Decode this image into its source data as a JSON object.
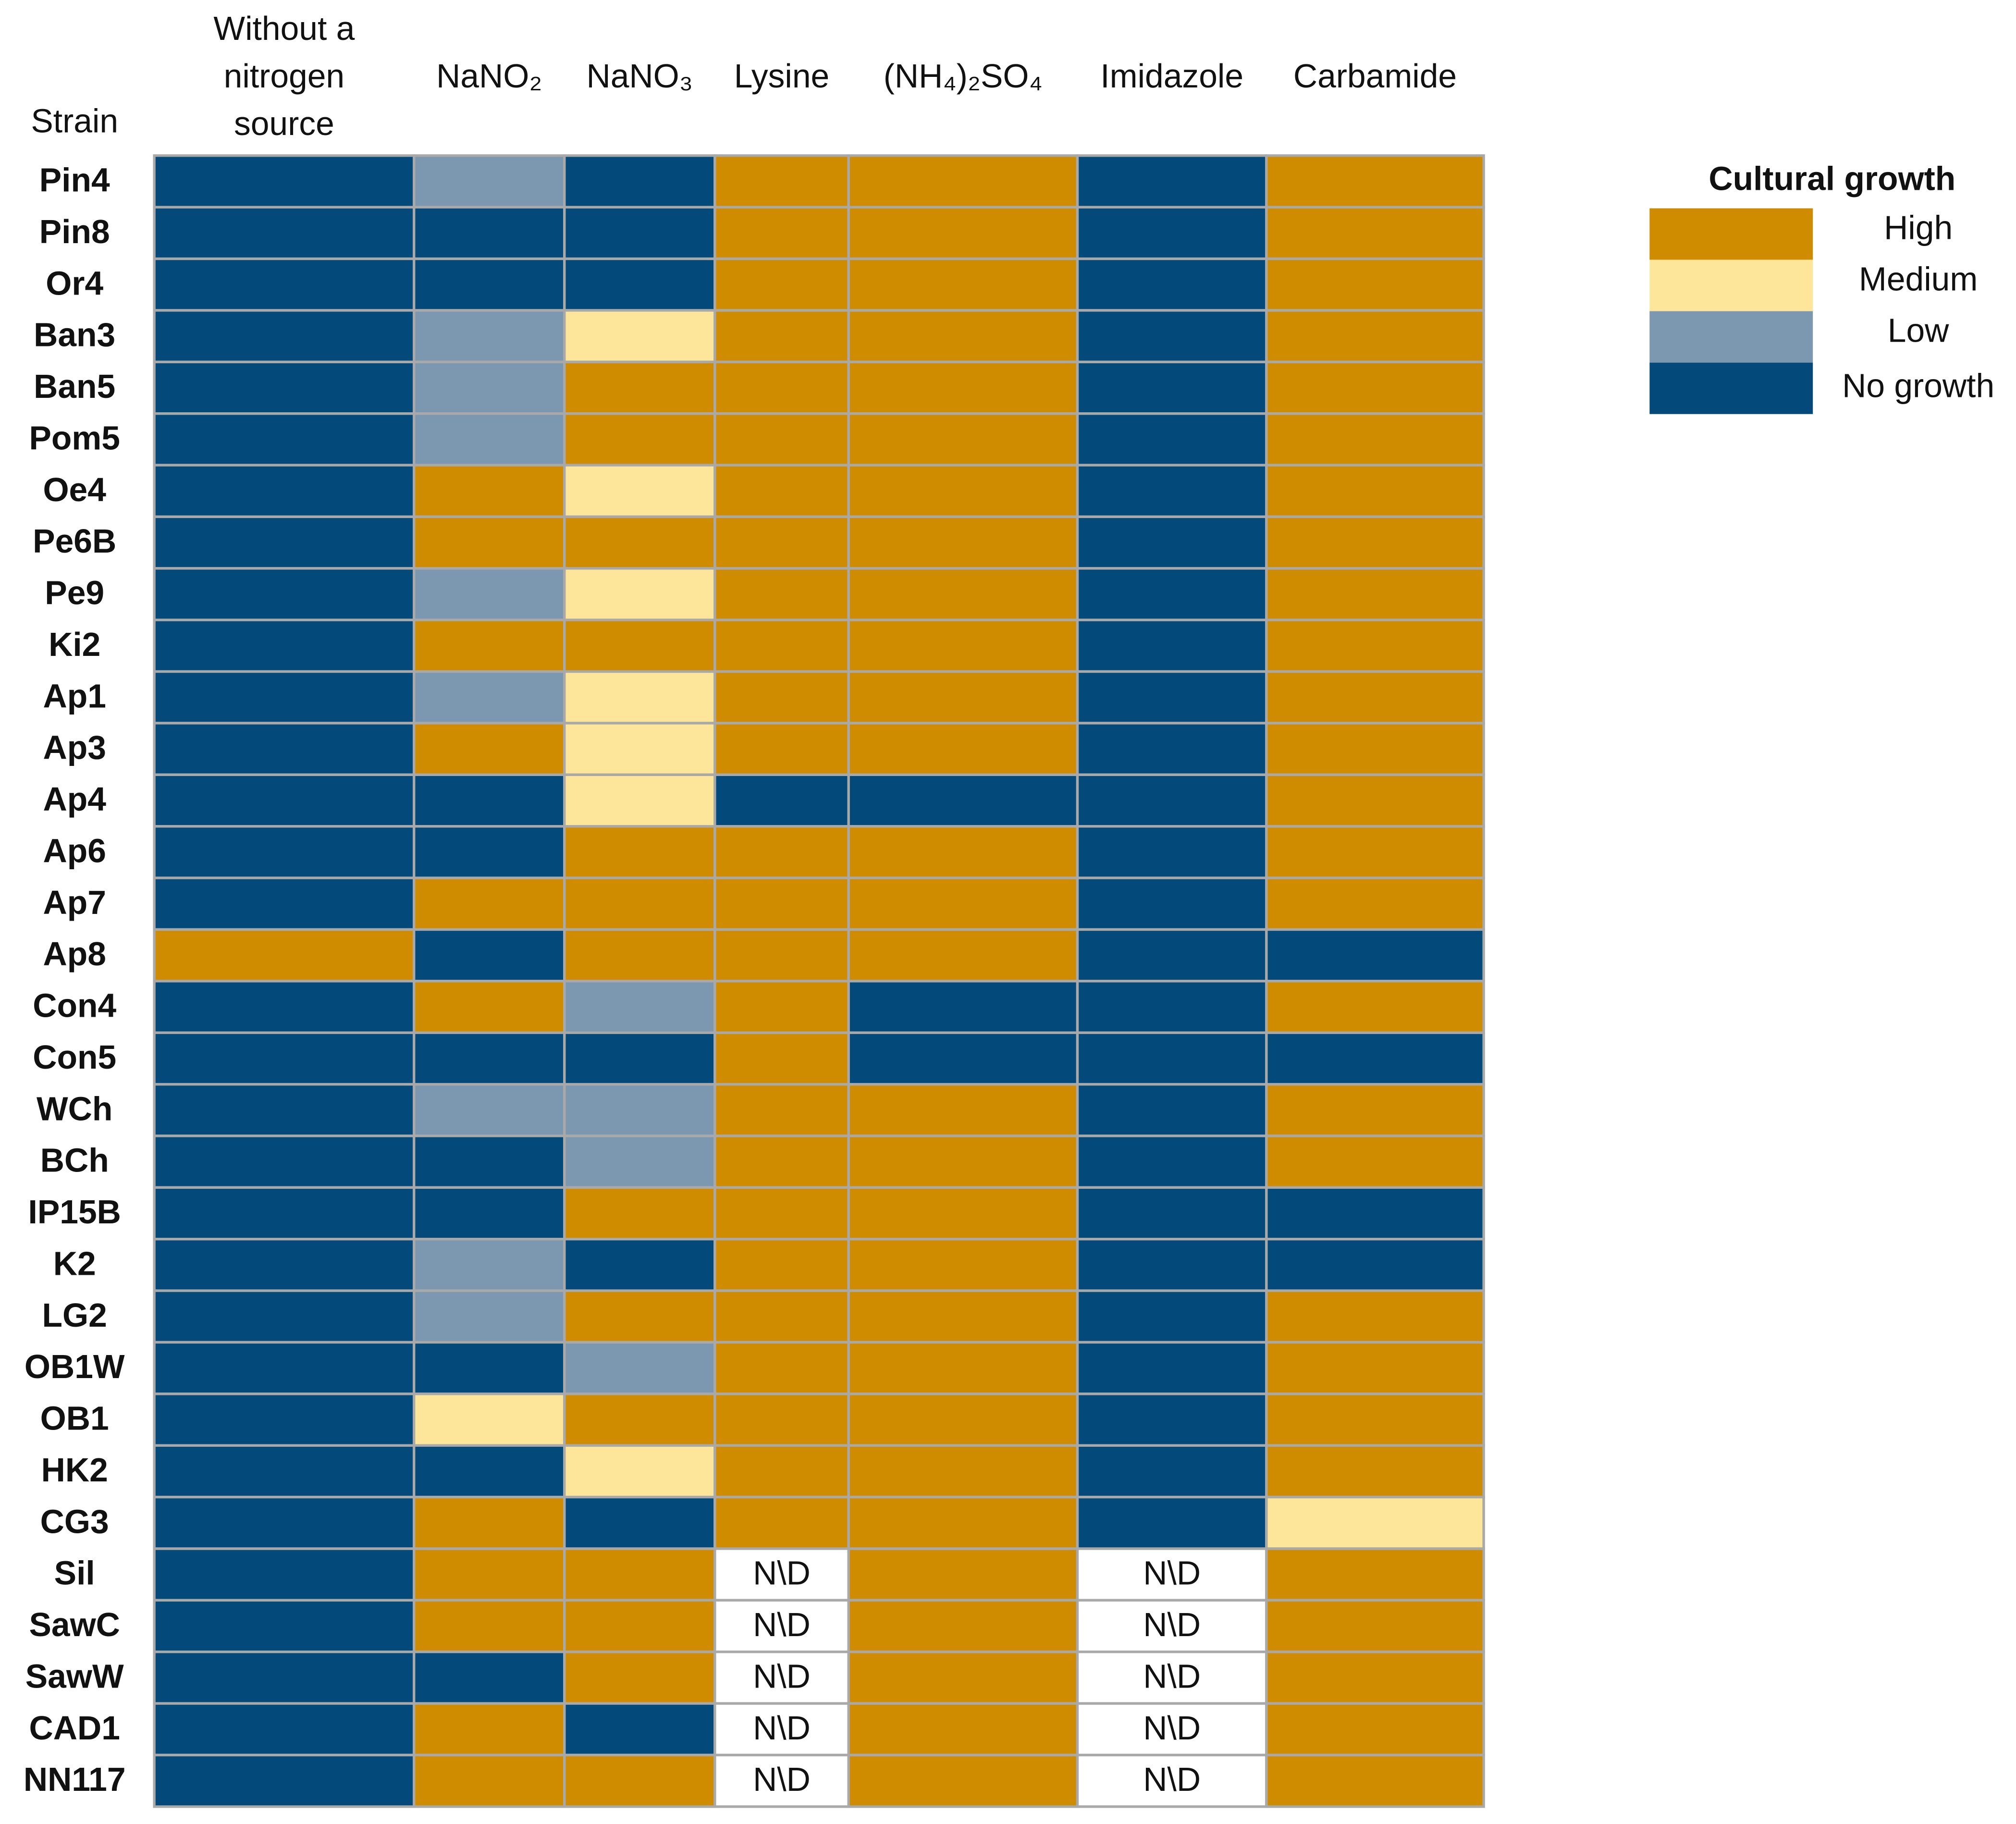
{
  "chart_data": {
    "type": "heatmap",
    "row_header": "Strain",
    "columns": [
      "Without a nitrogen source",
      "NaNO₂",
      "NaNO₃",
      "Lysine",
      "(NH₄)₂SO₄",
      "Imidazole",
      "Carbamide"
    ],
    "categories": [
      "Pin4",
      "Pin8",
      "Or4",
      "Ban3",
      "Ban5",
      "Pom5",
      "Oe4",
      "Pe6B",
      "Pe9",
      "Ki2",
      "Ap1",
      "Ap3",
      "Ap4",
      "Ap6",
      "Ap7",
      "Ap8",
      "Con4",
      "Con5",
      "WCh",
      "BCh",
      "IP15B",
      "K2",
      "LG2",
      "OB1W",
      "OB1",
      "HK2",
      "CG3",
      "Sil",
      "SawC",
      "SawW",
      "CAD1",
      "NN117"
    ],
    "values": [
      [
        "No growth",
        "Low",
        "No growth",
        "High",
        "High",
        "No growth",
        "High"
      ],
      [
        "No growth",
        "No growth",
        "No growth",
        "High",
        "High",
        "No growth",
        "High"
      ],
      [
        "No growth",
        "No growth",
        "No growth",
        "High",
        "High",
        "No growth",
        "High"
      ],
      [
        "No growth",
        "Low",
        "Medium",
        "High",
        "High",
        "No growth",
        "High"
      ],
      [
        "No growth",
        "Low",
        "High",
        "High",
        "High",
        "No growth",
        "High"
      ],
      [
        "No growth",
        "Low",
        "High",
        "High",
        "High",
        "No growth",
        "High"
      ],
      [
        "No growth",
        "High",
        "Medium",
        "High",
        "High",
        "No growth",
        "High"
      ],
      [
        "No growth",
        "High",
        "High",
        "High",
        "High",
        "No growth",
        "High"
      ],
      [
        "No growth",
        "Low",
        "Medium",
        "High",
        "High",
        "No growth",
        "High"
      ],
      [
        "No growth",
        "High",
        "High",
        "High",
        "High",
        "No growth",
        "High"
      ],
      [
        "No growth",
        "Low",
        "Medium",
        "High",
        "High",
        "No growth",
        "High"
      ],
      [
        "No growth",
        "High",
        "Medium",
        "High",
        "High",
        "No growth",
        "High"
      ],
      [
        "No growth",
        "No growth",
        "Medium",
        "No growth",
        "No growth",
        "No growth",
        "High"
      ],
      [
        "No growth",
        "No growth",
        "High",
        "High",
        "High",
        "No growth",
        "High"
      ],
      [
        "No growth",
        "High",
        "High",
        "High",
        "High",
        "No growth",
        "High"
      ],
      [
        "High",
        "No growth",
        "High",
        "High",
        "High",
        "No growth",
        "No growth"
      ],
      [
        "No growth",
        "High",
        "Low",
        "High",
        "No growth",
        "No growth",
        "High"
      ],
      [
        "No growth",
        "No growth",
        "No growth",
        "High",
        "No growth",
        "No growth",
        "No growth"
      ],
      [
        "No growth",
        "Low",
        "Low",
        "High",
        "High",
        "No growth",
        "High"
      ],
      [
        "No growth",
        "No growth",
        "Low",
        "High",
        "High",
        "No growth",
        "High"
      ],
      [
        "No growth",
        "No growth",
        "High",
        "High",
        "High",
        "No growth",
        "No growth"
      ],
      [
        "No growth",
        "Low",
        "No growth",
        "High",
        "High",
        "No growth",
        "No growth"
      ],
      [
        "No growth",
        "Low",
        "High",
        "High",
        "High",
        "No growth",
        "High"
      ],
      [
        "No growth",
        "No growth",
        "Low",
        "High",
        "High",
        "No growth",
        "High"
      ],
      [
        "No growth",
        "Medium",
        "High",
        "High",
        "High",
        "No growth",
        "High"
      ],
      [
        "No growth",
        "No growth",
        "Medium",
        "High",
        "High",
        "No growth",
        "High"
      ],
      [
        "No growth",
        "High",
        "No growth",
        "High",
        "High",
        "No growth",
        "Medium"
      ],
      [
        "No growth",
        "High",
        "High",
        "N\\D",
        "High",
        "N\\D",
        "High"
      ],
      [
        "No growth",
        "High",
        "High",
        "N\\D",
        "High",
        "N\\D",
        "High"
      ],
      [
        "No growth",
        "No growth",
        "High",
        "N\\D",
        "High",
        "N\\D",
        "High"
      ],
      [
        "No growth",
        "High",
        "No growth",
        "N\\D",
        "High",
        "N\\D",
        "High"
      ],
      [
        "No growth",
        "High",
        "High",
        "N\\D",
        "High",
        "N\\D",
        "High"
      ]
    ],
    "legend_title": "Cultural growth",
    "legend": [
      {
        "name": "High",
        "color": "#d08c00"
      },
      {
        "name": "Medium",
        "color": "#fde59a"
      },
      {
        "name": "Low",
        "color": "#7c98b0"
      },
      {
        "name": "No growth",
        "color": "#034a7a"
      }
    ]
  }
}
